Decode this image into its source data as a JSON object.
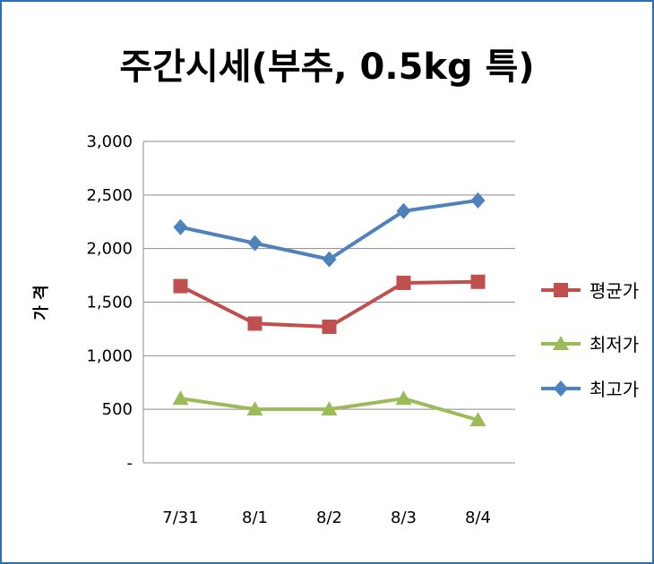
{
  "chart_data": {
    "type": "line",
    "title": "주간시세(부추, 0.5kg 특)",
    "ylabel": "가 격",
    "xlabel": "",
    "categories": [
      "7/31",
      "8/1",
      "8/2",
      "8/3",
      "8/4"
    ],
    "ylim": [
      0,
      3000
    ],
    "ytick_values": [
      0,
      500,
      1000,
      1500,
      2000,
      2500,
      3000
    ],
    "ytick_labels": [
      "-",
      "500",
      "1,000",
      "1,500",
      "2,000",
      "2,500",
      "3,000"
    ],
    "grid": true,
    "legend_position": "right",
    "series": [
      {
        "name": "평균가",
        "values": [
          1650,
          1300,
          1270,
          1680,
          1690
        ],
        "color": "#c0504d",
        "marker": "square"
      },
      {
        "name": "최저가",
        "values": [
          600,
          500,
          500,
          600,
          400
        ],
        "color": "#9bbb59",
        "marker": "triangle"
      },
      {
        "name": "최고가",
        "values": [
          2200,
          2050,
          1900,
          2350,
          2450
        ],
        "color": "#4f81bd",
        "marker": "diamond"
      }
    ]
  }
}
